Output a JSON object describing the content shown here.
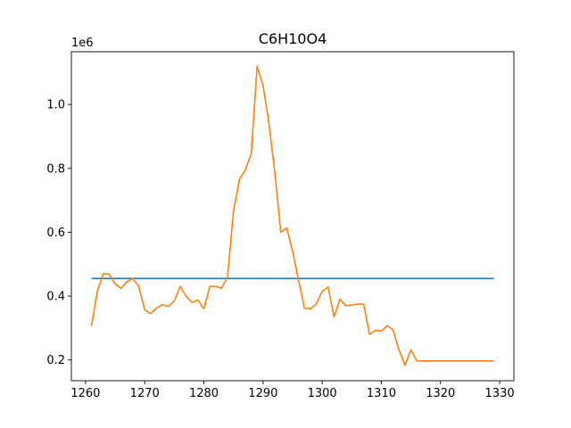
{
  "chart_data": {
    "type": "line",
    "title": "C6H10O4",
    "xlabel": "",
    "ylabel": "",
    "y_offset_label": "1e6",
    "xlim": [
      1257.6,
      1332.4
    ],
    "ylim": [
      0.135,
      1.165
    ],
    "x_ticks": [
      1260,
      1270,
      1280,
      1290,
      1300,
      1310,
      1320,
      1330
    ],
    "y_ticks": [
      0.2,
      0.4,
      0.6,
      0.8,
      1.0
    ],
    "y_tick_labels": [
      "0.2",
      "0.4",
      "0.6",
      "0.8",
      "1.0"
    ],
    "grid": false,
    "series": [
      {
        "color": "#1f77b4",
        "x": [
          1261,
          1329
        ],
        "y": [
          0.455,
          0.455
        ]
      },
      {
        "color": "#ff7f0e",
        "x": [
          1261,
          1262,
          1263,
          1264,
          1265,
          1266,
          1267,
          1268,
          1269,
          1270,
          1271,
          1272,
          1273,
          1274,
          1275,
          1276,
          1277,
          1278,
          1279,
          1280,
          1281,
          1282,
          1283,
          1284,
          1285,
          1286,
          1287,
          1288,
          1289,
          1290,
          1291,
          1292,
          1293,
          1294,
          1295,
          1296,
          1297,
          1298,
          1299,
          1300,
          1301,
          1302,
          1303,
          1304,
          1305,
          1306,
          1307,
          1308,
          1309,
          1310,
          1311,
          1312,
          1313,
          1314,
          1315,
          1316,
          1317,
          1318,
          1319,
          1320,
          1321,
          1322,
          1323,
          1324,
          1325,
          1326,
          1327,
          1328,
          1329
        ],
        "y": [
          0.307,
          0.415,
          0.47,
          0.468,
          0.438,
          0.424,
          0.445,
          0.455,
          0.43,
          0.357,
          0.345,
          0.363,
          0.373,
          0.367,
          0.385,
          0.43,
          0.4,
          0.38,
          0.388,
          0.36,
          0.43,
          0.43,
          0.425,
          0.46,
          0.665,
          0.765,
          0.795,
          0.845,
          1.12,
          1.06,
          0.94,
          0.785,
          0.6,
          0.613,
          0.54,
          0.45,
          0.362,
          0.36,
          0.375,
          0.415,
          0.428,
          0.335,
          0.39,
          0.37,
          0.372,
          0.375,
          0.375,
          0.28,
          0.293,
          0.29,
          0.308,
          0.293,
          0.23,
          0.183,
          0.232,
          0.197,
          0.197,
          0.197,
          0.197,
          0.197,
          0.197,
          0.197,
          0.197,
          0.197,
          0.197,
          0.197,
          0.197,
          0.197,
          0.197
        ]
      }
    ]
  }
}
